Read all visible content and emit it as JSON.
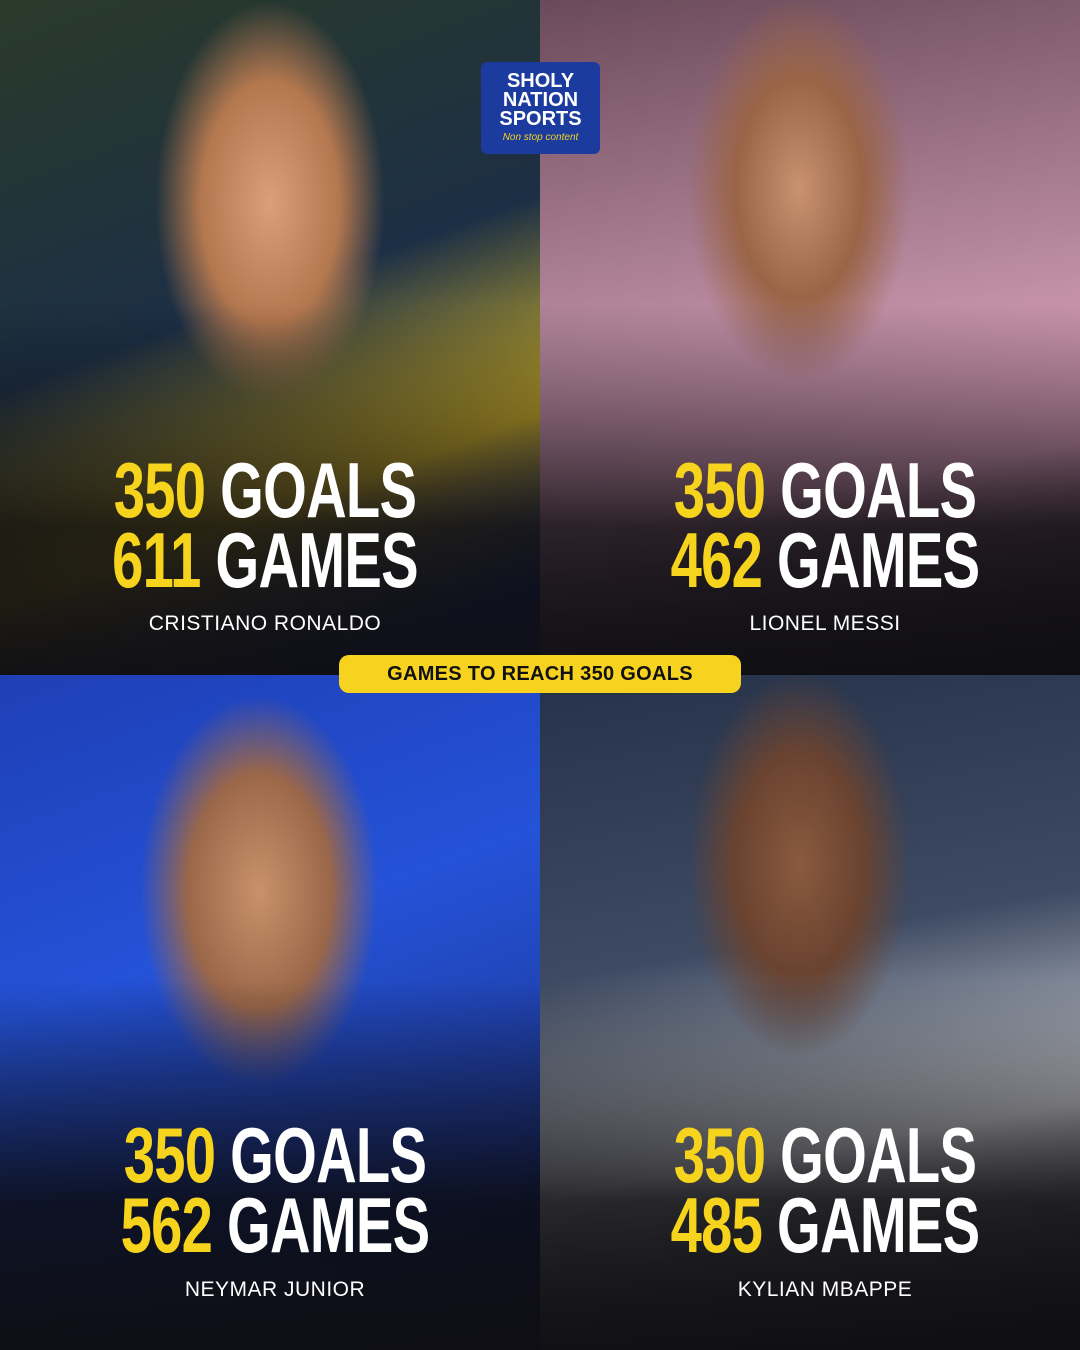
{
  "logo": {
    "lines": [
      "SHOLY",
      "NATION",
      "SPORTS"
    ],
    "tagline": "Non stop content"
  },
  "banner": "GAMES TO REACH 350 GOALS",
  "colors": {
    "accent": "#f6d31c",
    "logo_bg": "#1b3b9e"
  },
  "players": [
    {
      "name": "CRISTIANO RONALDO",
      "goals": "350",
      "goals_label": "GOALS",
      "games": "611",
      "games_label": "GAMES"
    },
    {
      "name": "LIONEL MESSI",
      "goals": "350",
      "goals_label": "GOALS",
      "games": "462",
      "games_label": "GAMES"
    },
    {
      "name": "NEYMAR JUNIOR",
      "goals": "350",
      "goals_label": "GOALS",
      "games": "562",
      "games_label": "GAMES"
    },
    {
      "name": "KYLIAN MBAPPE",
      "goals": "350",
      "goals_label": "GOALS",
      "games": "485",
      "games_label": "GAMES"
    }
  ]
}
